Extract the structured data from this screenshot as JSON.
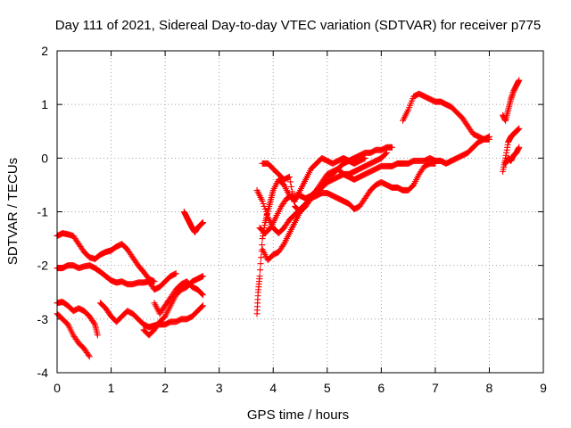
{
  "chart_data": {
    "type": "scatter",
    "title": "Day 111 of 2021, Sidereal Day-to-day VTEC variation (SDTVAR) for receiver p775",
    "xlabel": "GPS time / hours",
    "ylabel": "SDTVAR / TECUs",
    "xlim": [
      0,
      9
    ],
    "ylim": [
      -4,
      2
    ],
    "xticks": [
      "0",
      "1",
      "2",
      "3",
      "4",
      "5",
      "6",
      "7",
      "8",
      "9"
    ],
    "yticks": [
      "-4",
      "-3",
      "-2",
      "-1",
      "0",
      "1",
      "2"
    ],
    "grid": true,
    "marker": "plus",
    "color": "#ff0000",
    "series": [
      {
        "x": [
          0.0,
          0.1,
          0.2,
          0.3,
          0.4,
          0.5,
          0.6,
          0.7,
          0.8,
          0.9,
          1.0,
          1.1,
          1.2,
          1.3,
          1.4,
          1.5,
          1.6,
          1.7,
          1.8
        ],
        "y": [
          -1.45,
          -1.4,
          -1.42,
          -1.45,
          -1.6,
          -1.75,
          -1.85,
          -1.88,
          -1.8,
          -1.75,
          -1.72,
          -1.65,
          -1.6,
          -1.7,
          -1.85,
          -2.0,
          -2.12,
          -2.25,
          -2.3
        ]
      },
      {
        "x": [
          0.0,
          0.1,
          0.2,
          0.3,
          0.4,
          0.5,
          0.6,
          0.7,
          0.8,
          0.9,
          1.0,
          1.1,
          1.2,
          1.3,
          1.4,
          1.5,
          1.6,
          1.7,
          1.8,
          1.9,
          2.0,
          2.1,
          2.2
        ],
        "y": [
          -2.05,
          -2.05,
          -2.0,
          -2.0,
          -2.05,
          -2.02,
          -2.0,
          -2.05,
          -2.12,
          -2.2,
          -2.28,
          -2.32,
          -2.3,
          -2.35,
          -2.35,
          -2.32,
          -2.32,
          -2.3,
          -2.45,
          -2.4,
          -2.3,
          -2.2,
          -2.15
        ]
      },
      {
        "x": [
          0.0,
          0.1,
          0.2,
          0.3,
          0.4,
          0.5,
          0.6,
          0.7,
          0.75
        ],
        "y": [
          -2.7,
          -2.68,
          -2.75,
          -2.85,
          -2.8,
          -2.85,
          -2.95,
          -3.1,
          -3.3
        ]
      },
      {
        "x": [
          0.0,
          0.1,
          0.2,
          0.3,
          0.4,
          0.5,
          0.6
        ],
        "y": [
          -2.9,
          -3.0,
          -3.1,
          -3.3,
          -3.45,
          -3.55,
          -3.7
        ]
      },
      {
        "x": [
          0.8,
          0.9,
          1.0,
          1.1,
          1.2,
          1.3,
          1.4,
          1.5,
          1.6,
          1.7,
          1.8,
          1.9,
          2.0,
          2.1,
          2.2,
          2.3,
          2.4,
          2.5,
          2.6,
          2.7
        ],
        "y": [
          -2.7,
          -2.8,
          -2.95,
          -3.05,
          -2.95,
          -2.85,
          -2.9,
          -3.0,
          -3.1,
          -3.15,
          -3.12,
          -3.1,
          -3.1,
          -3.05,
          -3.05,
          -3.0,
          -3.0,
          -2.95,
          -2.85,
          -2.75
        ]
      },
      {
        "x": [
          1.6,
          1.7,
          1.8,
          1.9,
          2.0,
          2.1,
          2.2,
          2.3,
          2.4,
          2.5,
          2.6,
          2.7
        ],
        "y": [
          -3.2,
          -3.3,
          -3.2,
          -3.05,
          -2.95,
          -2.75,
          -2.55,
          -2.45,
          -2.4,
          -2.3,
          -2.25,
          -2.2
        ]
      },
      {
        "x": [
          1.8,
          1.9,
          2.0,
          2.1,
          2.2,
          2.3,
          2.4,
          2.5,
          2.6,
          2.7
        ],
        "y": [
          -2.7,
          -2.9,
          -2.75,
          -2.6,
          -2.45,
          -2.35,
          -2.3,
          -2.4,
          -2.45,
          -2.55
        ]
      },
      {
        "x": [
          2.35,
          2.4,
          2.45,
          2.5,
          2.55,
          2.6,
          2.65,
          2.7
        ],
        "y": [
          -1.0,
          -1.1,
          -1.2,
          -1.3,
          -1.38,
          -1.3,
          -1.25,
          -1.2
        ]
      },
      {
        "x": [
          3.7,
          3.72,
          3.75,
          3.8,
          3.85,
          3.9,
          3.95,
          4.0,
          4.1,
          4.2,
          4.3,
          4.4,
          4.5,
          4.6,
          4.7,
          4.8,
          4.9,
          5.0,
          5.1,
          5.2,
          5.3,
          5.4,
          5.5,
          5.6,
          5.7
        ],
        "y": [
          -2.9,
          -2.5,
          -2.2,
          -1.5,
          -1.2,
          -1.0,
          -0.8,
          -0.6,
          -0.4,
          -0.5,
          -0.7,
          -0.8,
          -0.6,
          -0.4,
          -0.2,
          -0.1,
          0.0,
          -0.05,
          -0.1,
          -0.05,
          0.0,
          -0.05,
          -0.1,
          -0.05,
          0.0
        ]
      },
      {
        "x": [
          3.75,
          3.85,
          3.95,
          4.05,
          4.15,
          4.25,
          4.35,
          4.5,
          4.6,
          4.7,
          4.8,
          4.9,
          5.0,
          5.1,
          5.2,
          5.3,
          5.4,
          5.5,
          5.6,
          5.7,
          5.8,
          5.9,
          6.0,
          6.1,
          6.2
        ],
        "y": [
          -1.3,
          -1.4,
          -1.3,
          -1.1,
          -0.9,
          -0.75,
          -0.7,
          -0.7,
          -0.75,
          -0.7,
          -0.6,
          -0.5,
          -0.35,
          -0.3,
          -0.2,
          -0.1,
          -0.05,
          0.0,
          0.05,
          0.1,
          0.1,
          0.15,
          0.15,
          0.2,
          0.2
        ]
      },
      {
        "x": [
          3.8,
          3.9,
          4.0,
          4.1,
          4.2,
          4.3,
          4.4,
          4.5,
          4.6,
          4.7,
          4.8,
          4.9,
          5.0,
          5.1,
          5.2,
          5.3,
          5.4,
          5.5,
          5.6,
          5.7,
          5.8,
          5.9,
          6.0,
          6.1
        ],
        "y": [
          -1.7,
          -1.9,
          -1.8,
          -1.75,
          -1.6,
          -1.4,
          -1.2,
          -1.0,
          -0.9,
          -0.75,
          -0.65,
          -0.55,
          -0.45,
          -0.4,
          -0.35,
          -0.3,
          -0.3,
          -0.25,
          -0.2,
          -0.15,
          -0.1,
          -0.05,
          0.0,
          0.1
        ]
      },
      {
        "x": [
          3.7,
          3.8,
          3.9,
          4.0,
          4.1,
          4.2,
          4.3,
          4.4,
          4.5,
          4.6,
          4.7,
          4.8,
          4.9,
          5.0,
          5.1,
          5.2,
          5.3,
          5.4,
          5.5,
          5.6,
          5.7,
          5.8,
          5.9,
          6.0,
          6.1,
          6.2,
          6.3,
          6.4,
          6.5,
          6.6,
          6.7,
          6.8,
          6.9,
          7.0
        ],
        "y": [
          -0.6,
          -0.8,
          -1.1,
          -1.3,
          -1.4,
          -1.3,
          -1.15,
          -1.05,
          -0.95,
          -0.85,
          -0.75,
          -0.7,
          -0.65,
          -0.65,
          -0.7,
          -0.75,
          -0.8,
          -0.85,
          -0.95,
          -0.9,
          -0.75,
          -0.6,
          -0.5,
          -0.45,
          -0.5,
          -0.55,
          -0.55,
          -0.6,
          -0.6,
          -0.5,
          -0.3,
          -0.15,
          -0.1,
          -0.1
        ]
      },
      {
        "x": [
          3.8,
          3.9,
          4.0,
          4.1,
          4.2,
          4.3,
          4.4,
          4.5,
          4.6,
          4.7,
          4.8,
          4.9,
          5.0,
          5.1,
          5.2,
          5.3,
          5.4,
          5.5,
          5.6,
          5.7,
          5.8,
          5.9,
          6.0,
          6.1,
          6.2,
          6.3,
          6.4,
          6.5,
          6.6,
          6.7,
          6.8,
          6.9,
          7.0,
          7.1,
          7.2,
          7.3,
          7.4,
          7.5,
          7.6,
          7.7,
          7.8,
          7.9,
          8.0
        ],
        "y": [
          -0.1,
          -0.1,
          -0.2,
          -0.3,
          -0.4,
          -0.35,
          -0.9,
          -1.0,
          -0.9,
          -0.75,
          -0.6,
          -0.45,
          -0.3,
          -0.25,
          -0.2,
          -0.3,
          -0.35,
          -0.4,
          -0.35,
          -0.3,
          -0.25,
          -0.2,
          -0.15,
          -0.15,
          -0.15,
          -0.1,
          -0.1,
          -0.1,
          -0.05,
          -0.05,
          -0.05,
          0.0,
          -0.05,
          -0.05,
          -0.1,
          -0.05,
          0.0,
          0.05,
          0.1,
          0.2,
          0.3,
          0.35,
          0.4
        ]
      },
      {
        "x": [
          6.4,
          6.5,
          6.6,
          6.7,
          6.8,
          6.9,
          7.0,
          7.1,
          7.2,
          7.3,
          7.4,
          7.5,
          7.6,
          7.7,
          7.8,
          7.9,
          8.0
        ],
        "y": [
          0.7,
          0.9,
          1.15,
          1.2,
          1.15,
          1.1,
          1.05,
          1.05,
          1.0,
          0.95,
          0.85,
          0.75,
          0.6,
          0.45,
          0.4,
          0.35,
          0.35
        ]
      },
      {
        "x": [
          8.25,
          8.3,
          8.35,
          8.4,
          8.45,
          8.5,
          8.55
        ],
        "y": [
          0.8,
          0.7,
          0.9,
          1.1,
          1.25,
          1.35,
          1.45
        ]
      },
      {
        "x": [
          8.25,
          8.3,
          8.35,
          8.4,
          8.45,
          8.5,
          8.55
        ],
        "y": [
          -0.25,
          0.0,
          0.3,
          0.4,
          0.45,
          0.5,
          0.55
        ]
      },
      {
        "x": [
          8.3,
          8.35,
          8.4,
          8.45,
          8.5,
          8.55
        ],
        "y": [
          -0.1,
          0.0,
          -0.05,
          0.05,
          0.1,
          0.2
        ]
      }
    ]
  }
}
